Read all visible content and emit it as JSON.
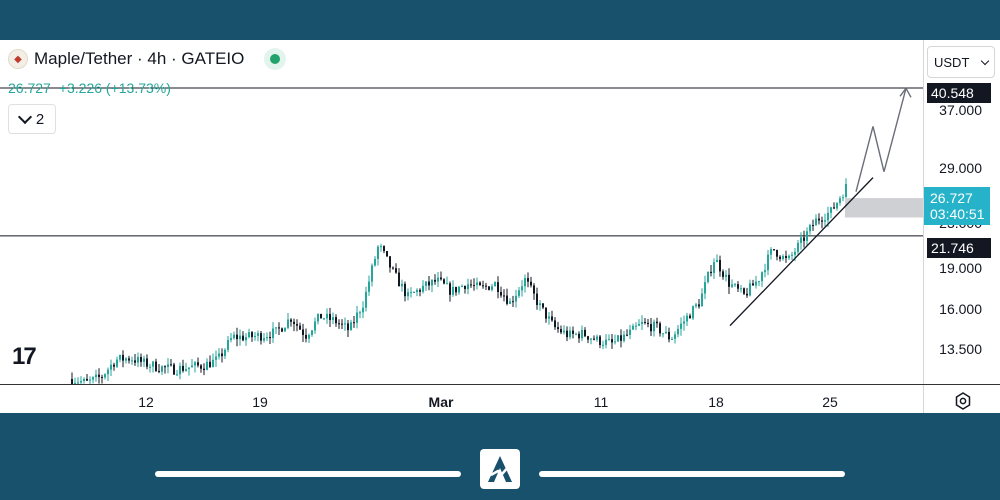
{
  "header": {
    "title": "Maple/Tether · 4h · GATEIO",
    "price": "26.727",
    "change": "+3.226 (+13.73%)",
    "collapse_count": "2",
    "currency": "USDT"
  },
  "price_labels": {
    "target": "40.548",
    "current": "26.727",
    "countdown": "03:40:51",
    "support": "21.746"
  },
  "colors": {
    "up": "#26a69a",
    "down": "#131722",
    "accent": "#26b3c9",
    "background": "#17516b"
  },
  "icons": [
    "maple-coin-icon",
    "live-dot-icon",
    "chevron-down-icon",
    "tradingview-logo-icon",
    "settings-icon",
    "brand-logo-icon"
  ],
  "chart_data": {
    "type": "candlestick",
    "title": "Maple/Tether · 4h · GATEIO",
    "y_axis": {
      "scale": "log",
      "ticks": [
        "37.000",
        "29.000",
        "23.000",
        "19.000",
        "16.000",
        "13.500"
      ]
    },
    "x_axis": {
      "ticks": [
        "12",
        "19",
        "Mar",
        "11",
        "18",
        "25"
      ]
    },
    "grid": false,
    "horizontal_levels": [
      40.548,
      21.746
    ],
    "last_price": 26.727,
    "zone": [
      23.5,
      25.5
    ],
    "trendline_from": 14.9,
    "trendline_to": 27.8,
    "projection": [
      26.2,
      34.5,
      28.5,
      40.5
    ],
    "path_anchors": [
      11.9,
      11.7,
      12.0,
      12.9,
      13.0,
      12.7,
      12.5,
      12.4,
      12.5,
      12.6,
      12.9,
      14.2,
      14.2,
      14.3,
      14.5,
      15.4,
      14.3,
      15.5,
      15.2,
      14.6,
      16.5,
      20.9,
      18.6,
      16.8,
      17.5,
      18.0,
      17.2,
      17.8,
      17.4,
      17.8,
      16.4,
      18.1,
      16.2,
      14.8,
      14.3,
      14.4,
      14.0,
      13.8,
      14.3,
      15.0,
      14.8,
      14.1,
      15.3,
      16.5,
      19.8,
      17.8,
      16.9,
      18.1,
      20.6,
      19.5,
      21.3,
      23.3,
      24.1,
      26.7
    ]
  }
}
